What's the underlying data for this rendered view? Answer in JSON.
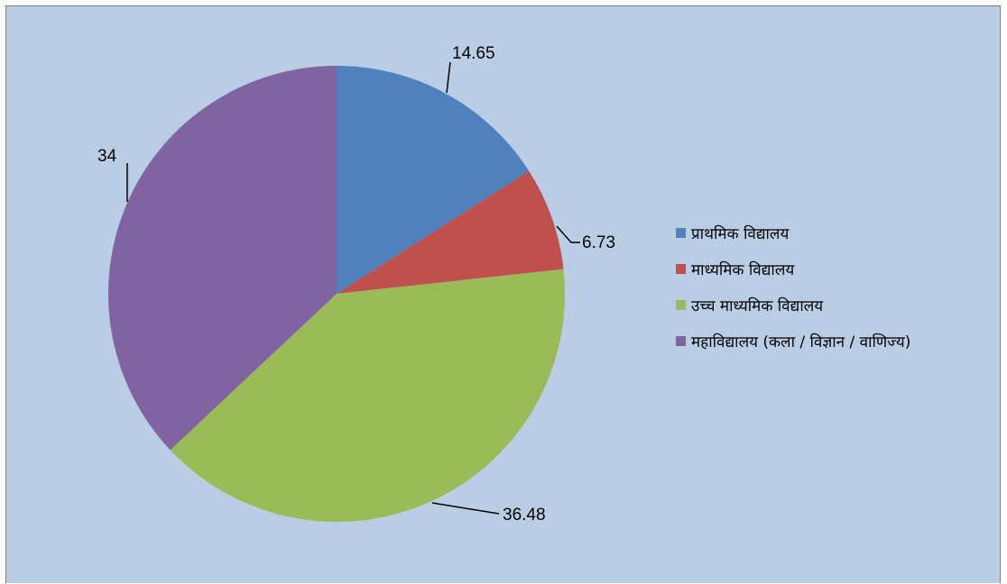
{
  "chart_data": {
    "type": "pie",
    "categories": [
      "प्राथमिक विद्यालय",
      "माध्यमिक विद्यालय",
      "उच्च माध्यमिक विद्यालय",
      "महाविद्यालय (कला / विज्ञान / वाणिज्य)"
    ],
    "values": [
      14.65,
      6.73,
      36.48,
      34
    ],
    "value_labels": [
      "14.65",
      "6.73",
      "36.48",
      "34"
    ],
    "colors": [
      "#4f81bd",
      "#c0504d",
      "#9bbb59",
      "#8064a2"
    ],
    "legend_position": "right",
    "start_angle": "12 o'clock",
    "direction": "clockwise"
  },
  "chart_style": {
    "background": "#b9cde5",
    "border": "#7f7f7f"
  }
}
